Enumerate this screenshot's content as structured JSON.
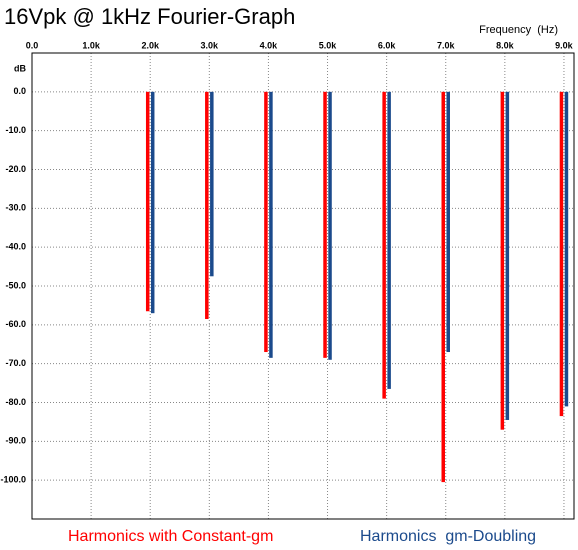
{
  "chart_data": {
    "type": "bar",
    "title": "16Vpk @ 1kHz Fourier-Graph",
    "x_label": "Frequency  (Hz)",
    "y_label": "dB",
    "x": [
      2000,
      3000,
      4000,
      5000,
      6000,
      7000,
      8000,
      9000
    ],
    "series": [
      {
        "name": "Harmonics with Constant-gm",
        "color": "#ff0000",
        "values": [
          -56.5,
          -58.5,
          -67,
          -68.5,
          -79,
          -100.5,
          -87,
          -83.5
        ]
      },
      {
        "name": "Harmonics  gm-Doubling",
        "color": "#1b4a8c",
        "values": [
          -57,
          -47.5,
          -68.5,
          -69,
          -76.5,
          -67,
          -84.5,
          -81
        ]
      }
    ],
    "xlim": [
      0,
      9170
    ],
    "xticks": [
      {
        "value": 0,
        "label": "0.0"
      },
      {
        "value": 1000,
        "label": "1.0k"
      },
      {
        "value": 2000,
        "label": "2.0k"
      },
      {
        "value": 3000,
        "label": "3.0k"
      },
      {
        "value": 4000,
        "label": "4.0k"
      },
      {
        "value": 5000,
        "label": "5.0k"
      },
      {
        "value": 6000,
        "label": "6.0k"
      },
      {
        "value": 7000,
        "label": "7.0k"
      },
      {
        "value": 8000,
        "label": "8.0k"
      },
      {
        "value": 9000,
        "label": "9.0k"
      }
    ],
    "ylim": [
      -110,
      10
    ],
    "yticks": [
      {
        "value": 0,
        "label": "0.0"
      },
      {
        "value": -10,
        "label": "-10.0"
      },
      {
        "value": -20,
        "label": "-20.0"
      },
      {
        "value": -30,
        "label": "-30.0"
      },
      {
        "value": -40,
        "label": "-40.0"
      },
      {
        "value": -50,
        "label": "-50.0"
      },
      {
        "value": -60,
        "label": "-60.0"
      },
      {
        "value": -70,
        "label": "-70.0"
      },
      {
        "value": -80,
        "label": "-80.0"
      },
      {
        "value": -90,
        "label": "-90.0"
      },
      {
        "value": -100,
        "label": "-100.0"
      }
    ],
    "grid": true
  }
}
